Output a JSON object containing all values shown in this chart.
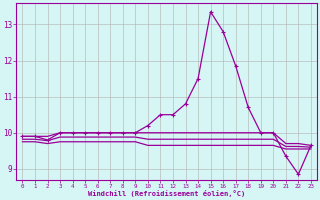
{
  "xlabel": "Windchill (Refroidissement éolien,°C)",
  "background_color": "#d6f5f5",
  "grid_color": "#b0b0b0",
  "line_color": "#990099",
  "x_data": [
    0,
    1,
    2,
    3,
    4,
    5,
    6,
    7,
    8,
    9,
    10,
    11,
    12,
    13,
    14,
    15,
    16,
    17,
    18,
    19,
    20,
    21,
    22,
    23
  ],
  "main_line": [
    9.9,
    9.9,
    9.8,
    10.0,
    10.0,
    10.0,
    10.0,
    10.0,
    10.0,
    10.0,
    10.2,
    10.5,
    10.5,
    10.8,
    11.5,
    13.35,
    12.8,
    11.85,
    10.7,
    10.0,
    10.0,
    9.35,
    8.85,
    9.65
  ],
  "upper_band": [
    9.9,
    9.9,
    9.9,
    10.0,
    10.0,
    10.0,
    10.0,
    10.0,
    10.0,
    10.0,
    10.0,
    10.0,
    10.0,
    10.0,
    10.0,
    10.0,
    10.0,
    10.0,
    10.0,
    10.0,
    10.0,
    9.7,
    9.7,
    9.65
  ],
  "lower_band": [
    9.75,
    9.75,
    9.7,
    9.75,
    9.75,
    9.75,
    9.75,
    9.75,
    9.75,
    9.75,
    9.65,
    9.65,
    9.65,
    9.65,
    9.65,
    9.65,
    9.65,
    9.65,
    9.65,
    9.65,
    9.65,
    9.55,
    9.55,
    9.55
  ],
  "mid_band": [
    9.82,
    9.82,
    9.78,
    9.88,
    9.88,
    9.88,
    9.88,
    9.88,
    9.88,
    9.88,
    9.82,
    9.82,
    9.82,
    9.82,
    9.82,
    9.82,
    9.82,
    9.82,
    9.82,
    9.82,
    9.82,
    9.62,
    9.62,
    9.6
  ],
  "ylim": [
    8.7,
    13.6
  ],
  "xlim": [
    -0.5,
    23.5
  ],
  "yticks": [
    9,
    10,
    11,
    12,
    13
  ],
  "xticks": [
    0,
    1,
    2,
    3,
    4,
    5,
    6,
    7,
    8,
    9,
    10,
    11,
    12,
    13,
    14,
    15,
    16,
    17,
    18,
    19,
    20,
    21,
    22,
    23
  ]
}
